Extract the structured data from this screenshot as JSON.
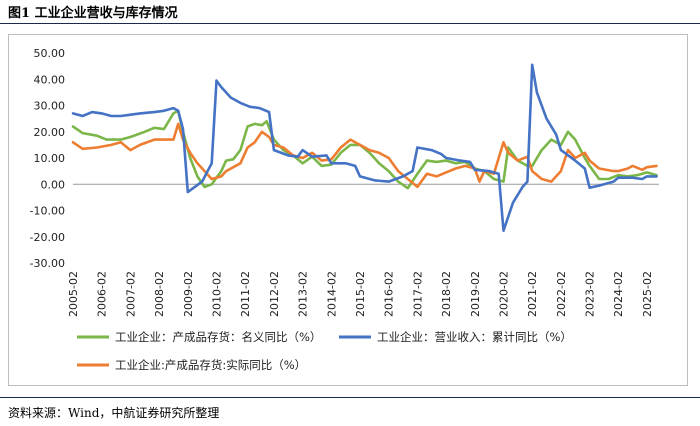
{
  "figure": {
    "title": "图1   工业企业营收与库存情况",
    "source": "资料来源：Wind，中航证券研究所整理"
  },
  "colors": {
    "green": "#7ab648",
    "blue": "#4472c4",
    "orange": "#ed7d31"
  },
  "chart_data": {
    "type": "line",
    "title": "",
    "xlabel": "",
    "ylabel": "",
    "ylim": [
      -30,
      50
    ],
    "y_ticks": [
      "50.00",
      "40.00",
      "30.00",
      "20.00",
      "10.00",
      "0.00",
      "-10.00",
      "-20.00",
      "-30.00"
    ],
    "x_ticks": [
      "2005-02",
      "2006-02",
      "2007-02",
      "2008-02",
      "2009-02",
      "2010-02",
      "2011-02",
      "2012-02",
      "2013-02",
      "2014-02",
      "2015-02",
      "2016-02",
      "2017-02",
      "2018-02",
      "2019-02",
      "2020-02",
      "2021-02",
      "2022-02",
      "2023-02",
      "2024-02",
      "2025-02"
    ],
    "grid": false,
    "legend_position": "bottom",
    "series": [
      {
        "name": "工业企业：产成品存货：名义同比（%）",
        "color": "green",
        "points": [
          [
            "2005-02",
            22
          ],
          [
            "2005-06",
            19.5
          ],
          [
            "2005-12",
            18.5
          ],
          [
            "2006-04",
            17
          ],
          [
            "2006-10",
            17
          ],
          [
            "2007-02",
            18
          ],
          [
            "2007-08",
            20
          ],
          [
            "2007-12",
            21.5
          ],
          [
            "2008-04",
            21
          ],
          [
            "2008-08",
            27
          ],
          [
            "2008-10",
            28
          ],
          [
            "2008-12",
            20
          ],
          [
            "2009-03",
            10
          ],
          [
            "2009-06",
            3
          ],
          [
            "2009-09",
            -1
          ],
          [
            "2009-12",
            0
          ],
          [
            "2010-04",
            5
          ],
          [
            "2010-06",
            9
          ],
          [
            "2010-09",
            9.5
          ],
          [
            "2010-12",
            13
          ],
          [
            "2011-03",
            22
          ],
          [
            "2011-06",
            23
          ],
          [
            "2011-09",
            22.5
          ],
          [
            "2011-11",
            24
          ],
          [
            "2012-02",
            17
          ],
          [
            "2012-06",
            13
          ],
          [
            "2012-10",
            11
          ],
          [
            "2013-02",
            8
          ],
          [
            "2013-06",
            10.5
          ],
          [
            "2013-10",
            7
          ],
          [
            "2014-02",
            7.5
          ],
          [
            "2014-06",
            12
          ],
          [
            "2014-10",
            15
          ],
          [
            "2015-02",
            15
          ],
          [
            "2015-06",
            12
          ],
          [
            "2015-10",
            8
          ],
          [
            "2016-02",
            5
          ],
          [
            "2016-06",
            1
          ],
          [
            "2016-10",
            -1.5
          ],
          [
            "2017-02",
            4
          ],
          [
            "2017-06",
            9
          ],
          [
            "2017-10",
            8.5
          ],
          [
            "2018-02",
            9
          ],
          [
            "2018-06",
            8
          ],
          [
            "2018-10",
            8.5
          ],
          [
            "2019-02",
            6
          ],
          [
            "2019-06",
            5
          ],
          [
            "2019-10",
            2
          ],
          [
            "2020-02",
            1
          ],
          [
            "2020-04",
            14
          ],
          [
            "2020-08",
            9
          ],
          [
            "2020-12",
            7
          ],
          [
            "2021-02",
            7
          ],
          [
            "2021-06",
            13
          ],
          [
            "2021-10",
            17
          ],
          [
            "2022-02",
            15
          ],
          [
            "2022-05",
            20
          ],
          [
            "2022-08",
            17
          ],
          [
            "2022-12",
            10
          ],
          [
            "2023-02",
            7
          ],
          [
            "2023-06",
            2
          ],
          [
            "2023-10",
            2
          ],
          [
            "2024-02",
            3.5
          ],
          [
            "2024-06",
            3
          ],
          [
            "2024-10",
            3.5
          ],
          [
            "2025-02",
            4.5
          ],
          [
            "2025-06",
            3.5
          ]
        ]
      },
      {
        "name": "工业企业：营业收入：累计同比（%）",
        "color": "blue",
        "points": [
          [
            "2005-02",
            27
          ],
          [
            "2005-06",
            26
          ],
          [
            "2005-10",
            27.5
          ],
          [
            "2006-02",
            27
          ],
          [
            "2006-06",
            26
          ],
          [
            "2006-10",
            26
          ],
          [
            "2007-02",
            26.5
          ],
          [
            "2007-06",
            27
          ],
          [
            "2007-12",
            27.5
          ],
          [
            "2008-04",
            28
          ],
          [
            "2008-08",
            29
          ],
          [
            "2008-10",
            28
          ],
          [
            "2008-12",
            21
          ],
          [
            "2009-02",
            -3
          ],
          [
            "2009-08",
            1
          ],
          [
            "2009-12",
            8
          ],
          [
            "2010-02",
            39.5
          ],
          [
            "2010-04",
            37
          ],
          [
            "2010-08",
            33
          ],
          [
            "2010-12",
            31
          ],
          [
            "2011-04",
            29.5
          ],
          [
            "2011-08",
            29
          ],
          [
            "2011-12",
            27.5
          ],
          [
            "2012-02",
            13
          ],
          [
            "2012-08",
            11
          ],
          [
            "2012-12",
            10.5
          ],
          [
            "2013-02",
            13
          ],
          [
            "2013-06",
            10.5
          ],
          [
            "2013-12",
            11
          ],
          [
            "2014-02",
            8
          ],
          [
            "2014-08",
            8
          ],
          [
            "2014-12",
            7
          ],
          [
            "2015-02",
            3
          ],
          [
            "2015-08",
            1.5
          ],
          [
            "2016-02",
            1
          ],
          [
            "2016-08",
            3
          ],
          [
            "2016-12",
            5
          ],
          [
            "2017-02",
            14
          ],
          [
            "2017-08",
            13
          ],
          [
            "2017-12",
            11.5
          ],
          [
            "2018-02",
            10
          ],
          [
            "2018-08",
            9
          ],
          [
            "2018-12",
            8.5
          ],
          [
            "2019-02",
            5.5
          ],
          [
            "2019-08",
            5
          ],
          [
            "2019-12",
            4
          ],
          [
            "2020-02",
            -17.7
          ],
          [
            "2020-06",
            -7
          ],
          [
            "2020-10",
            -1
          ],
          [
            "2020-12",
            1
          ],
          [
            "2021-02",
            45.5
          ],
          [
            "2021-04",
            35
          ],
          [
            "2021-08",
            25
          ],
          [
            "2021-12",
            19
          ],
          [
            "2022-02",
            13
          ],
          [
            "2022-08",
            9
          ],
          [
            "2022-12",
            6
          ],
          [
            "2023-02",
            -1.3
          ],
          [
            "2023-06",
            -0.5
          ],
          [
            "2023-12",
            1
          ],
          [
            "2024-02",
            2.5
          ],
          [
            "2024-08",
            2.5
          ],
          [
            "2024-12",
            2
          ],
          [
            "2025-02",
            3
          ],
          [
            "2025-06",
            3
          ]
        ]
      },
      {
        "name": "工业企业:产成品存货:实际同比（%）",
        "color": "orange",
        "points": [
          [
            "2005-02",
            16
          ],
          [
            "2005-06",
            13.5
          ],
          [
            "2005-12",
            14
          ],
          [
            "2006-06",
            15
          ],
          [
            "2006-10",
            16
          ],
          [
            "2007-02",
            13
          ],
          [
            "2007-06",
            15
          ],
          [
            "2007-12",
            17
          ],
          [
            "2008-04",
            17
          ],
          [
            "2008-08",
            17
          ],
          [
            "2008-10",
            23
          ],
          [
            "2008-12",
            17
          ],
          [
            "2009-03",
            12
          ],
          [
            "2009-06",
            8
          ],
          [
            "2009-12",
            2
          ],
          [
            "2010-04",
            3
          ],
          [
            "2010-06",
            5
          ],
          [
            "2010-12",
            8
          ],
          [
            "2011-03",
            14
          ],
          [
            "2011-06",
            16
          ],
          [
            "2011-09",
            20
          ],
          [
            "2011-12",
            18
          ],
          [
            "2012-02",
            15
          ],
          [
            "2012-06",
            14
          ],
          [
            "2012-10",
            11
          ],
          [
            "2013-02",
            10
          ],
          [
            "2013-06",
            12
          ],
          [
            "2013-10",
            9
          ],
          [
            "2014-02",
            9.5
          ],
          [
            "2014-06",
            14
          ],
          [
            "2014-10",
            17
          ],
          [
            "2015-02",
            15
          ],
          [
            "2015-06",
            13
          ],
          [
            "2015-10",
            12
          ],
          [
            "2016-02",
            10
          ],
          [
            "2016-06",
            5
          ],
          [
            "2016-10",
            2
          ],
          [
            "2017-02",
            -1
          ],
          [
            "2017-06",
            4
          ],
          [
            "2017-10",
            3
          ],
          [
            "2018-02",
            4.5
          ],
          [
            "2018-06",
            6
          ],
          [
            "2018-10",
            7
          ],
          [
            "2019-02",
            6
          ],
          [
            "2019-04",
            1
          ],
          [
            "2019-06",
            5
          ],
          [
            "2019-10",
            4
          ],
          [
            "2020-02",
            16
          ],
          [
            "2020-04",
            12
          ],
          [
            "2020-08",
            9
          ],
          [
            "2020-12",
            10.5
          ],
          [
            "2021-02",
            5
          ],
          [
            "2021-06",
            2
          ],
          [
            "2021-10",
            1
          ],
          [
            "2022-02",
            5
          ],
          [
            "2022-05",
            13
          ],
          [
            "2022-08",
            10
          ],
          [
            "2022-12",
            12
          ],
          [
            "2023-02",
            9
          ],
          [
            "2023-06",
            6
          ],
          [
            "2023-12",
            5
          ],
          [
            "2024-02",
            5
          ],
          [
            "2024-06",
            6
          ],
          [
            "2024-08",
            7
          ],
          [
            "2024-12",
            5.5
          ],
          [
            "2025-02",
            6.5
          ],
          [
            "2025-06",
            7
          ]
        ]
      }
    ]
  }
}
